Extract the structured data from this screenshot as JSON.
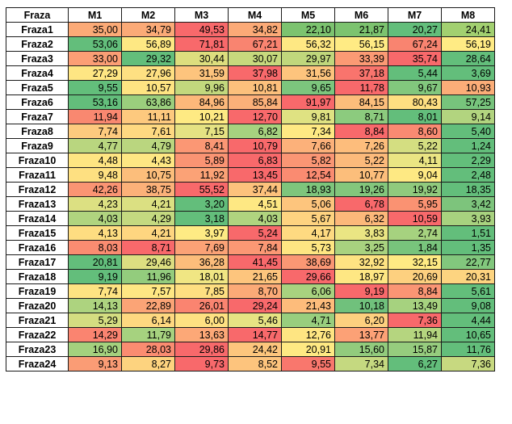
{
  "table": {
    "corner": "Fraza",
    "columns": [
      "M1",
      "M2",
      "M3",
      "M4",
      "M5",
      "M6",
      "M7",
      "M8"
    ],
    "rows": [
      {
        "label": "Fraza1",
        "cells": [
          {
            "v": "35,00",
            "c": "#fbaa77"
          },
          {
            "v": "34,79",
            "c": "#fbaa77"
          },
          {
            "v": "49,53",
            "c": "#f8696b"
          },
          {
            "v": "34,82",
            "c": "#fbaa77"
          },
          {
            "v": "22,10",
            "c": "#7cc36f"
          },
          {
            "v": "21,87",
            "c": "#7cc36f"
          },
          {
            "v": "20,27",
            "c": "#63be7b"
          },
          {
            "v": "24,41",
            "c": "#a2d070"
          }
        ]
      },
      {
        "label": "Fraza2",
        "cells": [
          {
            "v": "53,06",
            "c": "#63be7b"
          },
          {
            "v": "56,89",
            "c": "#fee883"
          },
          {
            "v": "71,81",
            "c": "#f8696b"
          },
          {
            "v": "67,21",
            "c": "#f98470"
          },
          {
            "v": "56,32",
            "c": "#fee883"
          },
          {
            "v": "56,15",
            "c": "#ffeb84"
          },
          {
            "v": "67,24",
            "c": "#f98470"
          },
          {
            "v": "56,19",
            "c": "#ffeb84"
          }
        ]
      },
      {
        "label": "Fraza3",
        "cells": [
          {
            "v": "33,00",
            "c": "#fb9e75"
          },
          {
            "v": "29,32",
            "c": "#63be7b"
          },
          {
            "v": "30,44",
            "c": "#ddde7e"
          },
          {
            "v": "30,07",
            "c": "#c7d97d"
          },
          {
            "v": "29,97",
            "c": "#c0d77c"
          },
          {
            "v": "33,39",
            "c": "#fb9a74"
          },
          {
            "v": "35,74",
            "c": "#f8696b"
          },
          {
            "v": "28,64",
            "c": "#63be7b"
          }
        ]
      },
      {
        "label": "Fraza4",
        "cells": [
          {
            "v": "27,29",
            "c": "#fee683"
          },
          {
            "v": "27,96",
            "c": "#fee082"
          },
          {
            "v": "31,59",
            "c": "#fdc47d"
          },
          {
            "v": "37,98",
            "c": "#f8696b"
          },
          {
            "v": "31,56",
            "c": "#fdc47d"
          },
          {
            "v": "37,18",
            "c": "#f9746d"
          },
          {
            "v": "5,44",
            "c": "#63be7b"
          },
          {
            "v": "3,69",
            "c": "#63be7b"
          }
        ]
      },
      {
        "label": "Fraza5",
        "cells": [
          {
            "v": "9,55",
            "c": "#63be7b"
          },
          {
            "v": "10,57",
            "c": "#fee482"
          },
          {
            "v": "9,96",
            "c": "#c2d87d"
          },
          {
            "v": "10,81",
            "c": "#fcc07c"
          },
          {
            "v": "9,65",
            "c": "#7cc57d"
          },
          {
            "v": "11,78",
            "c": "#f8696b"
          },
          {
            "v": "9,67",
            "c": "#82c77d"
          },
          {
            "v": "10,93",
            "c": "#fbad78"
          }
        ]
      },
      {
        "label": "Fraza6",
        "cells": [
          {
            "v": "53,16",
            "c": "#63be7b"
          },
          {
            "v": "63,86",
            "c": "#9bcf7d"
          },
          {
            "v": "84,96",
            "c": "#fcb87a"
          },
          {
            "v": "85,84",
            "c": "#fcb079"
          },
          {
            "v": "91,97",
            "c": "#f8696b"
          },
          {
            "v": "84,15",
            "c": "#fcbe7b"
          },
          {
            "v": "80,43",
            "c": "#fedf81"
          },
          {
            "v": "57,25",
            "c": "#77c47c"
          }
        ]
      },
      {
        "label": "Fraza7",
        "cells": [
          {
            "v": "11,94",
            "c": "#f98870"
          },
          {
            "v": "11,11",
            "c": "#fdc97e"
          },
          {
            "v": "10,21",
            "c": "#feea83"
          },
          {
            "v": "12,70",
            "c": "#f8696b"
          },
          {
            "v": "9,81",
            "c": "#dfe282"
          },
          {
            "v": "8,71",
            "c": "#8ccb7e"
          },
          {
            "v": "8,01",
            "c": "#63be7b"
          },
          {
            "v": "9,14",
            "c": "#b2d47f"
          }
        ]
      },
      {
        "label": "Fraza8",
        "cells": [
          {
            "v": "7,74",
            "c": "#fdca7e"
          },
          {
            "v": "7,61",
            "c": "#fed981"
          },
          {
            "v": "7,15",
            "c": "#e5e283"
          },
          {
            "v": "6,82",
            "c": "#a6d27f"
          },
          {
            "v": "7,34",
            "c": "#fee983"
          },
          {
            "v": "8,84",
            "c": "#f8696b"
          },
          {
            "v": "8,60",
            "c": "#f98a72"
          },
          {
            "v": "5,40",
            "c": "#63be7b"
          }
        ]
      },
      {
        "label": "Fraza9",
        "cells": [
          {
            "v": "4,77",
            "c": "#b9d67f"
          },
          {
            "v": "4,79",
            "c": "#bad67f"
          },
          {
            "v": "8,41",
            "c": "#fb9774"
          },
          {
            "v": "10,79",
            "c": "#f8696b"
          },
          {
            "v": "7,66",
            "c": "#fcb17a"
          },
          {
            "v": "7,26",
            "c": "#fdbd7c"
          },
          {
            "v": "5,22",
            "c": "#d4de81"
          },
          {
            "v": "1,24",
            "c": "#63be7b"
          }
        ]
      },
      {
        "label": "Fraza10",
        "cells": [
          {
            "v": "4,48",
            "c": "#fee582"
          },
          {
            "v": "4,43",
            "c": "#fee783"
          },
          {
            "v": "5,89",
            "c": "#fa9473"
          },
          {
            "v": "6,83",
            "c": "#f8696b"
          },
          {
            "v": "5,82",
            "c": "#fa9674"
          },
          {
            "v": "5,22",
            "c": "#fcba7b"
          },
          {
            "v": "4,11",
            "c": "#eae583"
          },
          {
            "v": "2,29",
            "c": "#63be7b"
          }
        ]
      },
      {
        "label": "Fraza11",
        "cells": [
          {
            "v": "9,48",
            "c": "#fee081"
          },
          {
            "v": "10,75",
            "c": "#fcbe7b"
          },
          {
            "v": "11,92",
            "c": "#fba276"
          },
          {
            "v": "13,45",
            "c": "#f8696b"
          },
          {
            "v": "12,54",
            "c": "#fa8b71"
          },
          {
            "v": "10,77",
            "c": "#fcbe7b"
          },
          {
            "v": "9,04",
            "c": "#fee983"
          },
          {
            "v": "2,48",
            "c": "#63be7b"
          }
        ]
      },
      {
        "label": "Fraza12",
        "cells": [
          {
            "v": "42,26",
            "c": "#fa9473"
          },
          {
            "v": "38,75",
            "c": "#fcb179"
          },
          {
            "v": "55,52",
            "c": "#f8696b"
          },
          {
            "v": "37,44",
            "c": "#fdc27c"
          },
          {
            "v": "18,93",
            "c": "#7ec57c"
          },
          {
            "v": "19,26",
            "c": "#83c67c"
          },
          {
            "v": "19,92",
            "c": "#90ca7d"
          },
          {
            "v": "18,35",
            "c": "#63be7b"
          }
        ]
      },
      {
        "label": "Fraza13",
        "cells": [
          {
            "v": "4,23",
            "c": "#dce082"
          },
          {
            "v": "4,21",
            "c": "#dbe082"
          },
          {
            "v": "3,20",
            "c": "#63be7b"
          },
          {
            "v": "4,51",
            "c": "#fee883"
          },
          {
            "v": "5,06",
            "c": "#fdc57d"
          },
          {
            "v": "6,78",
            "c": "#f8696b"
          },
          {
            "v": "5,95",
            "c": "#fa9272"
          },
          {
            "v": "3,42",
            "c": "#7dc47c"
          }
        ]
      },
      {
        "label": "Fraza14",
        "cells": [
          {
            "v": "4,03",
            "c": "#b0d47f"
          },
          {
            "v": "4,29",
            "c": "#c4d980"
          },
          {
            "v": "3,18",
            "c": "#63be7b"
          },
          {
            "v": "4,03",
            "c": "#b0d47f"
          },
          {
            "v": "5,67",
            "c": "#fed380"
          },
          {
            "v": "6,32",
            "c": "#fcb87a"
          },
          {
            "v": "10,59",
            "c": "#f8696b"
          },
          {
            "v": "3,93",
            "c": "#a8d27f"
          }
        ]
      },
      {
        "label": "Fraza15",
        "cells": [
          {
            "v": "4,13",
            "c": "#fedd81"
          },
          {
            "v": "4,21",
            "c": "#fed680"
          },
          {
            "v": "3,97",
            "c": "#feeb84"
          },
          {
            "v": "5,24",
            "c": "#f8696b"
          },
          {
            "v": "4,17",
            "c": "#feda81"
          },
          {
            "v": "3,83",
            "c": "#eae583"
          },
          {
            "v": "2,74",
            "c": "#a6d27f"
          },
          {
            "v": "1,51",
            "c": "#63be7b"
          }
        ]
      },
      {
        "label": "Fraza16",
        "cells": [
          {
            "v": "8,03",
            "c": "#fa8c71"
          },
          {
            "v": "8,71",
            "c": "#f8696b"
          },
          {
            "v": "7,69",
            "c": "#fba276"
          },
          {
            "v": "7,84",
            "c": "#fb9874"
          },
          {
            "v": "5,73",
            "c": "#fee682"
          },
          {
            "v": "3,25",
            "c": "#a8d27f"
          },
          {
            "v": "1,84",
            "c": "#78c47c"
          },
          {
            "v": "1,35",
            "c": "#63be7b"
          }
        ]
      },
      {
        "label": "Fraza17",
        "cells": [
          {
            "v": "20,81",
            "c": "#63be7b"
          },
          {
            "v": "29,46",
            "c": "#ddde81"
          },
          {
            "v": "36,28",
            "c": "#fcbd7b"
          },
          {
            "v": "41,45",
            "c": "#f8696b"
          },
          {
            "v": "38,69",
            "c": "#fa9774"
          },
          {
            "v": "32,92",
            "c": "#fee382"
          },
          {
            "v": "32,15",
            "c": "#feea83"
          },
          {
            "v": "22,77",
            "c": "#82c77d"
          }
        ]
      },
      {
        "label": "Fraza18",
        "cells": [
          {
            "v": "9,19",
            "c": "#63be7b"
          },
          {
            "v": "11,96",
            "c": "#93cc7d"
          },
          {
            "v": "18,01",
            "c": "#f0e683"
          },
          {
            "v": "21,65",
            "c": "#fdc57d"
          },
          {
            "v": "29,66",
            "c": "#f8696b"
          },
          {
            "v": "18,97",
            "c": "#fee783"
          },
          {
            "v": "20,69",
            "c": "#fdd07f"
          },
          {
            "v": "20,31",
            "c": "#fdd480"
          }
        ]
      },
      {
        "label": "Fraza19",
        "cells": [
          {
            "v": "7,74",
            "c": "#fee382"
          },
          {
            "v": "7,57",
            "c": "#fee783"
          },
          {
            "v": "7,85",
            "c": "#fedf81"
          },
          {
            "v": "8,70",
            "c": "#fbaa77"
          },
          {
            "v": "6,06",
            "c": "#a8d27f"
          },
          {
            "v": "9,19",
            "c": "#f8696b"
          },
          {
            "v": "8,84",
            "c": "#fa9574"
          },
          {
            "v": "5,61",
            "c": "#63be7b"
          }
        ]
      },
      {
        "label": "Fraza20",
        "cells": [
          {
            "v": "14,13",
            "c": "#add37f"
          },
          {
            "v": "22,89",
            "c": "#fba476"
          },
          {
            "v": "26,01",
            "c": "#fa8470"
          },
          {
            "v": "29,24",
            "c": "#f8696b"
          },
          {
            "v": "21,43",
            "c": "#fdbc7b"
          },
          {
            "v": "10,18",
            "c": "#70c17c"
          },
          {
            "v": "13,49",
            "c": "#a6d27f"
          },
          {
            "v": "9,08",
            "c": "#63be7b"
          }
        ]
      },
      {
        "label": "Fraza21",
        "cells": [
          {
            "v": "5,29",
            "c": "#d4dd81"
          },
          {
            "v": "6,14",
            "c": "#fed880"
          },
          {
            "v": "6,00",
            "c": "#fee182"
          },
          {
            "v": "5,46",
            "c": "#e6e383"
          },
          {
            "v": "4,71",
            "c": "#98ce7e"
          },
          {
            "v": "6,20",
            "c": "#fdd07f"
          },
          {
            "v": "7,36",
            "c": "#f8696b"
          },
          {
            "v": "4,44",
            "c": "#63be7b"
          }
        ]
      },
      {
        "label": "Fraza22",
        "cells": [
          {
            "v": "14,29",
            "c": "#fa8470"
          },
          {
            "v": "11,79",
            "c": "#a6d27f"
          },
          {
            "v": "13,63",
            "c": "#fca877"
          },
          {
            "v": "14,77",
            "c": "#f8696b"
          },
          {
            "v": "12,76",
            "c": "#fee582"
          },
          {
            "v": "13,77",
            "c": "#fca176"
          },
          {
            "v": "11,94",
            "c": "#b5d57f"
          },
          {
            "v": "10,65",
            "c": "#63be7b"
          }
        ]
      },
      {
        "label": "Fraza23",
        "cells": [
          {
            "v": "16,90",
            "c": "#a4d17e"
          },
          {
            "v": "28,03",
            "c": "#fa8c71"
          },
          {
            "v": "29,86",
            "c": "#f8696b"
          },
          {
            "v": "24,42",
            "c": "#fdc67d"
          },
          {
            "v": "20,91",
            "c": "#fee983"
          },
          {
            "v": "15,60",
            "c": "#92cb7d"
          },
          {
            "v": "15,87",
            "c": "#96cc7e"
          },
          {
            "v": "11,76",
            "c": "#63be7b"
          }
        ]
      },
      {
        "label": "Fraza24",
        "cells": [
          {
            "v": "9,13",
            "c": "#fa9c75"
          },
          {
            "v": "8,27",
            "c": "#fdd37f"
          },
          {
            "v": "9,73",
            "c": "#f8696b"
          },
          {
            "v": "8,52",
            "c": "#fdc47d"
          },
          {
            "v": "9,55",
            "c": "#f9776d"
          },
          {
            "v": "7,34",
            "c": "#c5d980"
          },
          {
            "v": "6,27",
            "c": "#63be7b"
          },
          {
            "v": "7,36",
            "c": "#c7d980"
          }
        ]
      }
    ]
  }
}
